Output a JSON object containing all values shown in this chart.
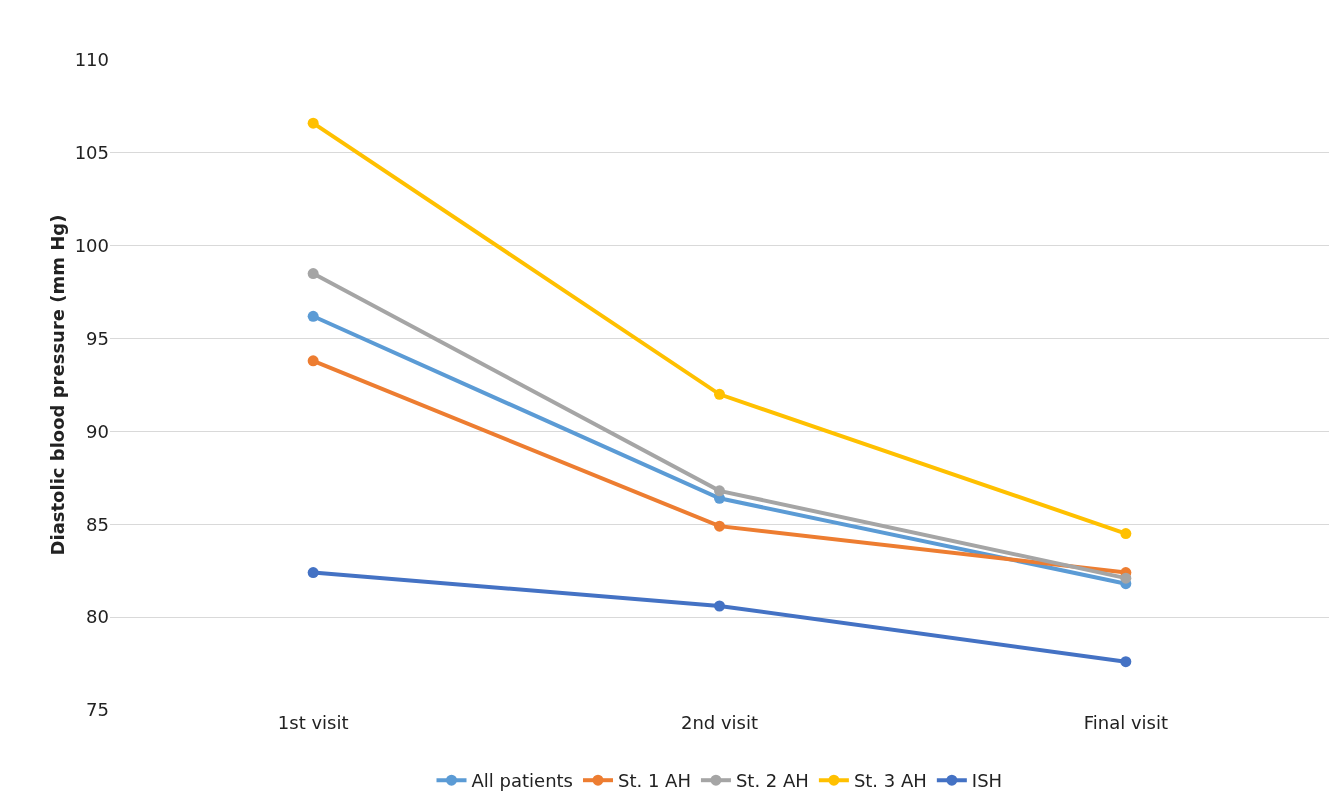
{
  "chart_data": {
    "type": "line",
    "ylabel": "Diastolic blood pressure (mm Hg)",
    "categories": [
      "1st visit",
      "2nd visit",
      "Final visit"
    ],
    "series": [
      {
        "name": "All patients",
        "color": "#5b9bd5",
        "values": [
          96.2,
          86.4,
          81.8
        ]
      },
      {
        "name": "St. 1 AH",
        "color": "#ed7d31",
        "values": [
          93.8,
          84.9,
          82.4
        ]
      },
      {
        "name": "St. 2 AH",
        "color": "#a5a5a5",
        "values": [
          98.5,
          86.8,
          82.1
        ]
      },
      {
        "name": "St. 3 AH",
        "color": "#ffc000",
        "values": [
          106.6,
          92.0,
          84.5
        ]
      },
      {
        "name": "ISH",
        "color": "#4472c4",
        "values": [
          82.4,
          80.6,
          77.6
        ]
      }
    ],
    "ylim": [
      75,
      110
    ],
    "yticks": [
      75,
      80,
      85,
      90,
      95,
      100,
      105,
      110
    ],
    "grid": "y",
    "legend": "bottom",
    "marker": "circle",
    "line_style": "solid"
  }
}
